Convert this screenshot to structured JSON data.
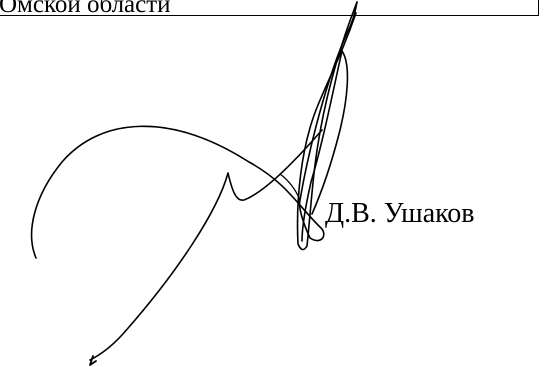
{
  "document": {
    "region_line": "Омской области",
    "signer_name": "Д.В. Ушаков"
  },
  "signature": {
    "type": "handwritten-signature",
    "stroke_color": "#000000"
  }
}
